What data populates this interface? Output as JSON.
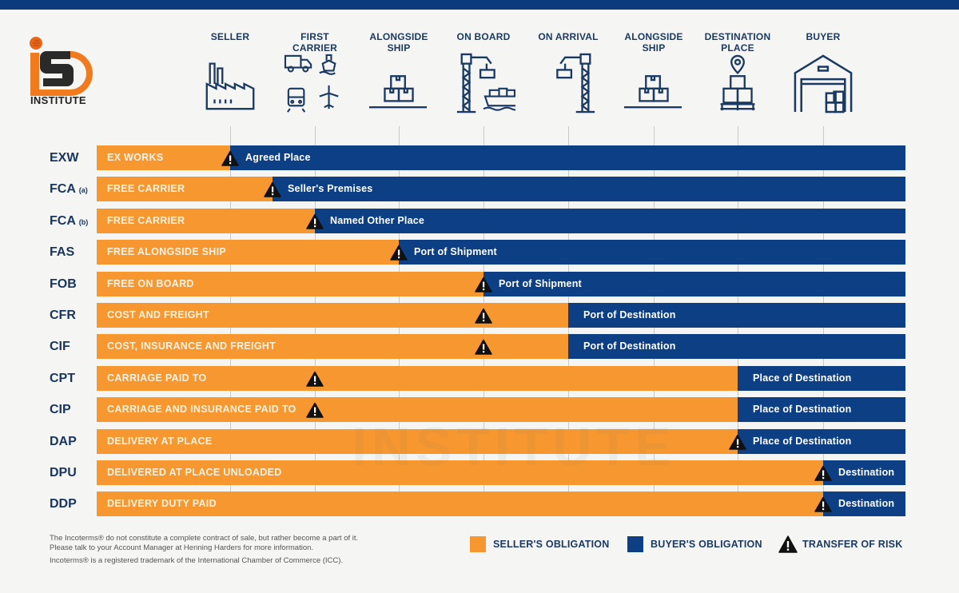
{
  "brand": {
    "logo_text": "INSTITUTE",
    "watermark_text": "INSTITUTE"
  },
  "colors": {
    "seller": "#f7972f",
    "buyer": "#0d3f85",
    "risk": "#111111",
    "header_band": "#0b3b7c"
  },
  "columns": [
    {
      "label_lines": [
        "SELLER"
      ],
      "icon": "factory-icon"
    },
    {
      "label_lines": [
        "FIRST",
        "CARRIER"
      ],
      "icon": "transport-modes-icon"
    },
    {
      "label_lines": [
        "ALONGSIDE",
        "SHIP"
      ],
      "icon": "boxes-on-quay-icon"
    },
    {
      "label_lines": [
        "ON BOARD"
      ],
      "icon": "crane-loading-icon"
    },
    {
      "label_lines": [
        "ON ARRIVAL"
      ],
      "icon": "crane-unloading-icon"
    },
    {
      "label_lines": [
        "ALONGSIDE",
        "SHIP"
      ],
      "icon": "boxes-on-quay-icon"
    },
    {
      "label_lines": [
        "DESTINATION",
        "PLACE"
      ],
      "icon": "pallet-location-icon"
    },
    {
      "label_lines": [
        "BUYER"
      ],
      "icon": "warehouse-icon"
    }
  ],
  "chart_data": {
    "type": "table",
    "title": "Incoterms obligations and transfer of risk",
    "stages": [
      "Seller",
      "First Carrier",
      "Alongside Ship",
      "On Board",
      "On Arrival",
      "Alongside Ship",
      "Destination Place",
      "Buyer"
    ],
    "rows": [
      {
        "code": "EXW",
        "sub": "",
        "name": "EX WORKS",
        "split_stage": 0,
        "risk_stage": 0,
        "buyer_label": "Agreed Place"
      },
      {
        "code": "FCA",
        "sub": "(a)",
        "name": "FREE CARRIER",
        "split_stage": 0.5,
        "risk_stage": 0.5,
        "buyer_label": "Seller's Premises"
      },
      {
        "code": "FCA",
        "sub": "(b)",
        "name": "FREE CARRIER",
        "split_stage": 1,
        "risk_stage": 1,
        "buyer_label": "Named Other Place"
      },
      {
        "code": "FAS",
        "sub": "",
        "name": "FREE ALONGSIDE SHIP",
        "split_stage": 2,
        "risk_stage": 2,
        "buyer_label": "Port of Shipment"
      },
      {
        "code": "FOB",
        "sub": "",
        "name": "FREE ON BOARD",
        "split_stage": 3,
        "risk_stage": 3,
        "buyer_label": "Port of Shipment"
      },
      {
        "code": "CFR",
        "sub": "",
        "name": "COST AND FREIGHT",
        "split_stage": 4,
        "risk_stage": 3,
        "buyer_label": "Port of Destination"
      },
      {
        "code": "CIF",
        "sub": "",
        "name": "COST, INSURANCE AND FREIGHT",
        "split_stage": 4,
        "risk_stage": 3,
        "buyer_label": "Port of Destination"
      },
      {
        "code": "CPT",
        "sub": "",
        "name": "CARRIAGE PAID TO",
        "split_stage": 6,
        "risk_stage": 1,
        "buyer_label": "Place of Destination"
      },
      {
        "code": "CIP",
        "sub": "",
        "name": "CARRIAGE AND INSURANCE PAID TO",
        "split_stage": 6,
        "risk_stage": 1,
        "buyer_label": "Place of Destination"
      },
      {
        "code": "DAP",
        "sub": "",
        "name": "DELIVERY AT PLACE",
        "split_stage": 6,
        "risk_stage": 6,
        "buyer_label": "Place of Destination"
      },
      {
        "code": "DPU",
        "sub": "",
        "name": "DELIVERED AT PLACE UNLOADED",
        "split_stage": 7,
        "risk_stage": 7,
        "buyer_label": "Destination"
      },
      {
        "code": "DDP",
        "sub": "",
        "name": "DELIVERY DUTY PAID",
        "split_stage": 7,
        "risk_stage": 7,
        "buyer_label": "Destination"
      }
    ],
    "legend": [
      {
        "key": "seller",
        "label": "SELLER'S OBLIGATION"
      },
      {
        "key": "buyer",
        "label": "BUYER'S OBLIGATION"
      },
      {
        "key": "risk",
        "label": "TRANSFER OF RISK"
      }
    ],
    "legend_position": "bottom-right"
  },
  "footer": {
    "line1": "The Incoterms® do not constitute a complete contract of sale, but rather become a part of it.",
    "line2": "Please talk to your Account Manager at Henning Harders for more information.",
    "line3": "Incoterms® is a registered trademark of the International Chamber of Commerce (ICC)."
  }
}
